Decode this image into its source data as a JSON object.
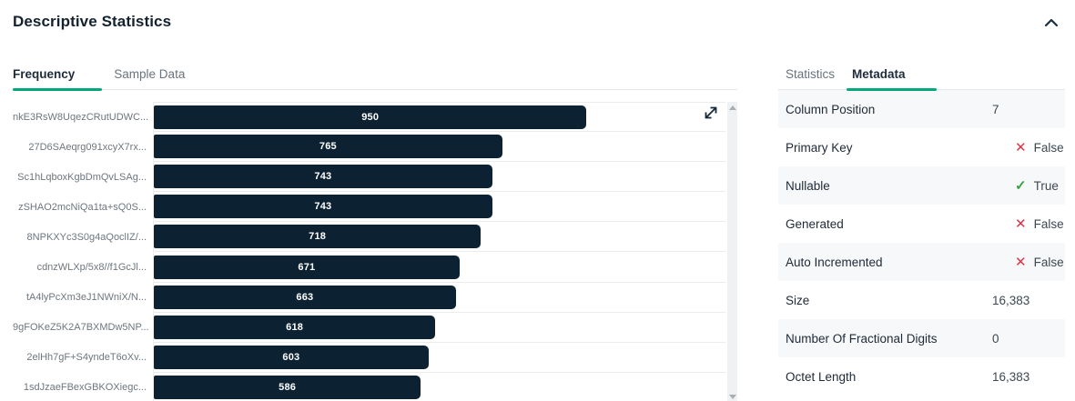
{
  "header": {
    "title": "Descriptive Statistics"
  },
  "colors": {
    "accent_green": "#00a87a",
    "bar_navy": "#0c2233",
    "false_red": "#d5374a",
    "true_green": "#38a146",
    "row_alt_bg": "#f7f8f9",
    "inactive_tab": "#68737e"
  },
  "icons": {
    "x": "✕",
    "check": "✓"
  },
  "left_panel": {
    "tabs": [
      {
        "label": "Frequency",
        "active": true
      },
      {
        "label": "Sample Data",
        "active": false
      }
    ]
  },
  "right_panel": {
    "tabs": [
      {
        "label": "Statistics",
        "active": false
      },
      {
        "label": "Metadata",
        "active": true
      }
    ],
    "rows": [
      {
        "label": "Column Position",
        "value": "7",
        "icon": null
      },
      {
        "label": "Primary Key",
        "value": "False",
        "icon": "x"
      },
      {
        "label": "Nullable",
        "value": "True",
        "icon": "check"
      },
      {
        "label": "Generated",
        "value": "False",
        "icon": "x"
      },
      {
        "label": "Auto Incremented",
        "value": "False",
        "icon": "x"
      },
      {
        "label": "Size",
        "value": "16,383",
        "icon": null
      },
      {
        "label": "Number Of Fractional Digits",
        "value": "0",
        "icon": null
      },
      {
        "label": "Octet Length",
        "value": "16,383",
        "icon": null
      }
    ]
  },
  "chart_data": {
    "type": "bar",
    "orientation": "horizontal",
    "title": "Frequency",
    "categories": [
      "nkE3RsW8UqezCRutUDWC...",
      "27D6SAeqrg091xcyX7rx...",
      "Sc1hLqboxKgbDmQvLSAg...",
      "zSHAO2mcNiQa1ta+sQ0S...",
      "8NPKXYc3S0g4aQoclIZ/...",
      "cdnzWLXp/5x8//f1GcJl...",
      "tA4lyPcXm3eJ1NWniX/N...",
      "9gFOKeZ5K2A7BXMDw5NP...",
      "2elHh7gF+S4yndeT6oXv...",
      "1sdJzaeFBexGBKOXiegc..."
    ],
    "values": [
      950,
      765,
      743,
      743,
      718,
      671,
      663,
      618,
      603,
      586
    ],
    "xlim": [
      0,
      1255
    ],
    "value_labels": "inside-center-white",
    "grid": "horizontal-row-separators",
    "legend": "none"
  }
}
